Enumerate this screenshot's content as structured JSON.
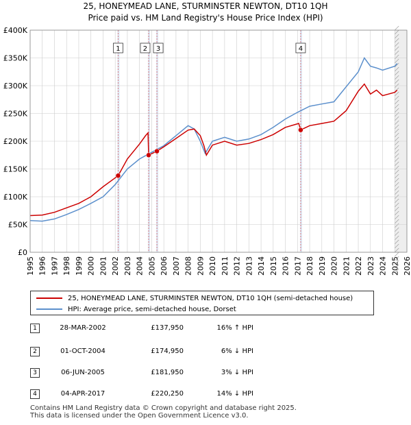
{
  "title_line1": "25, HONEYMEAD LANE, STURMINSTER NEWTON, DT10 1QH",
  "title_line2": "Price paid vs. HM Land Registry's House Price Index (HPI)",
  "colors": {
    "property": "#cc0000",
    "hpi": "#5b8fcc",
    "marker_band": "#dde6f3",
    "grid": "#cccccc"
  },
  "chart_data": {
    "type": "line",
    "xlim": [
      1995,
      2026
    ],
    "ylim": [
      0,
      400000
    ],
    "x_ticks": [
      1995,
      1996,
      1997,
      1998,
      1999,
      2000,
      2001,
      2002,
      2003,
      2004,
      2005,
      2006,
      2007,
      2008,
      2009,
      2010,
      2011,
      2012,
      2013,
      2014,
      2015,
      2016,
      2017,
      2018,
      2019,
      2020,
      2021,
      2022,
      2023,
      2024,
      2025,
      2026
    ],
    "y_ticks": [
      {
        "value": 0,
        "label": "£0"
      },
      {
        "value": 50000,
        "label": "£50K"
      },
      {
        "value": 100000,
        "label": "£100K"
      },
      {
        "value": 150000,
        "label": "£150K"
      },
      {
        "value": 200000,
        "label": "£200K"
      },
      {
        "value": 250000,
        "label": "£250K"
      },
      {
        "value": 300000,
        "label": "£300K"
      },
      {
        "value": 350000,
        "label": "£350K"
      },
      {
        "value": 400000,
        "label": "£400K"
      }
    ],
    "series": [
      {
        "name": "25, HONEYMEAD LANE, STURMINSTER NEWTON, DT10 1QH (semi-detached house)",
        "color": "#cc0000",
        "points": [
          [
            1995,
            66000
          ],
          [
            1996,
            67000
          ],
          [
            1997,
            72000
          ],
          [
            1998,
            80000
          ],
          [
            1999,
            88000
          ],
          [
            2000,
            100000
          ],
          [
            2001,
            118000
          ],
          [
            2002.24,
            137950
          ],
          [
            2003,
            168000
          ],
          [
            2004,
            195000
          ],
          [
            2004.5,
            210000
          ],
          [
            2004.7,
            215000
          ],
          [
            2004.75,
            174950
          ],
          [
            2005.43,
            181950
          ],
          [
            2006,
            190000
          ],
          [
            2007,
            205000
          ],
          [
            2008,
            220000
          ],
          [
            2008.5,
            222000
          ],
          [
            2009,
            210000
          ],
          [
            2009.3,
            192000
          ],
          [
            2009.5,
            175000
          ],
          [
            2010,
            193000
          ],
          [
            2011,
            200000
          ],
          [
            2012,
            193000
          ],
          [
            2013,
            196000
          ],
          [
            2014,
            203000
          ],
          [
            2015,
            212000
          ],
          [
            2016,
            225000
          ],
          [
            2017.1,
            232000
          ],
          [
            2017.26,
            220250
          ],
          [
            2018,
            228000
          ],
          [
            2019,
            232000
          ],
          [
            2020,
            236000
          ],
          [
            2021,
            255000
          ],
          [
            2022,
            290000
          ],
          [
            2022.5,
            303000
          ],
          [
            2023,
            285000
          ],
          [
            2023.5,
            292000
          ],
          [
            2024,
            282000
          ],
          [
            2025,
            288000
          ],
          [
            2025.2,
            292000
          ]
        ]
      },
      {
        "name": "HPI: Average price, semi-detached house, Dorset",
        "color": "#5b8fcc",
        "points": [
          [
            1995,
            57000
          ],
          [
            1996,
            56000
          ],
          [
            1997,
            60000
          ],
          [
            1998,
            68000
          ],
          [
            1999,
            77000
          ],
          [
            2000,
            88000
          ],
          [
            2001,
            100000
          ],
          [
            2002,
            122000
          ],
          [
            2003,
            150000
          ],
          [
            2004,
            168000
          ],
          [
            2005,
            180000
          ],
          [
            2006,
            192000
          ],
          [
            2007,
            210000
          ],
          [
            2008,
            228000
          ],
          [
            2008.5,
            222000
          ],
          [
            2009,
            200000
          ],
          [
            2009.4,
            178000
          ],
          [
            2010,
            200000
          ],
          [
            2011,
            207000
          ],
          [
            2012,
            200000
          ],
          [
            2013,
            204000
          ],
          [
            2014,
            212000
          ],
          [
            2015,
            225000
          ],
          [
            2016,
            240000
          ],
          [
            2017,
            252000
          ],
          [
            2018,
            263000
          ],
          [
            2019,
            267000
          ],
          [
            2020,
            271000
          ],
          [
            2021,
            298000
          ],
          [
            2022,
            325000
          ],
          [
            2022.5,
            350000
          ],
          [
            2023,
            335000
          ],
          [
            2023.5,
            332000
          ],
          [
            2024,
            328000
          ],
          [
            2025,
            335000
          ],
          [
            2025.2,
            340000
          ]
        ]
      }
    ],
    "sales": [
      {
        "id": "1",
        "x": 2002.24,
        "y": 137950
      },
      {
        "id": "2",
        "x": 2004.75,
        "y": 174950
      },
      {
        "id": "3",
        "x": 2005.43,
        "y": 181950
      },
      {
        "id": "4",
        "x": 2017.26,
        "y": 220250
      }
    ],
    "forecast_from": 2025.0
  },
  "legend": {
    "property_label": "25, HONEYMEAD LANE, STURMINSTER NEWTON, DT10 1QH (semi-detached house)",
    "hpi_label": "HPI: Average price, semi-detached house, Dorset"
  },
  "sales_table": [
    {
      "num": "1",
      "date": "28-MAR-2002",
      "price": "£137,950",
      "hpi": "16% ↑ HPI"
    },
    {
      "num": "2",
      "date": "01-OCT-2004",
      "price": "£174,950",
      "hpi": "6% ↓ HPI"
    },
    {
      "num": "3",
      "date": "06-JUN-2005",
      "price": "£181,950",
      "hpi": "3% ↓ HPI"
    },
    {
      "num": "4",
      "date": "04-APR-2017",
      "price": "£220,250",
      "hpi": "14% ↓ HPI"
    }
  ],
  "footer_line1": "Contains HM Land Registry data © Crown copyright and database right 2025.",
  "footer_line2": "This data is licensed under the Open Government Licence v3.0."
}
